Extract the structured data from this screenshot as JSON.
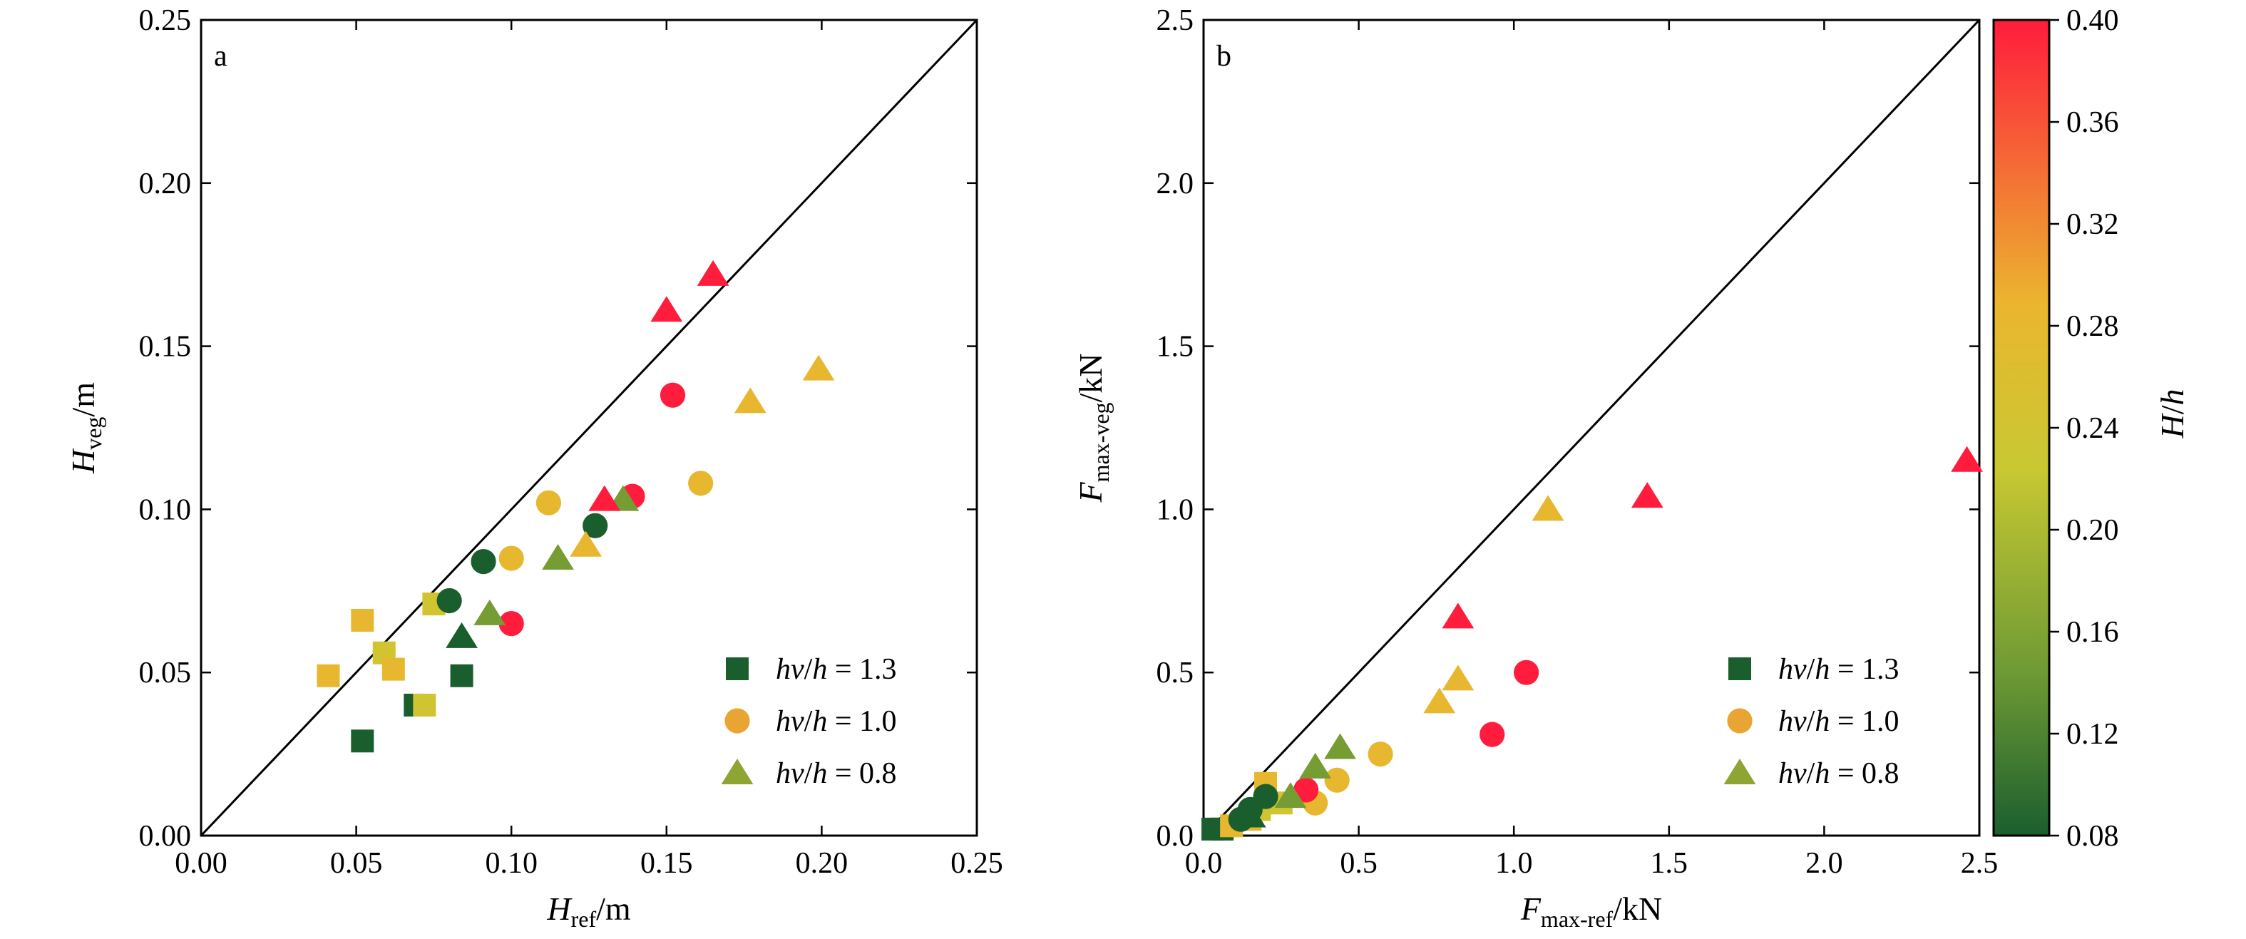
{
  "chart_data": [
    {
      "type": "scatter",
      "panel_label": "a",
      "title": "",
      "xlabel": {
        "main": "H",
        "sub": "ref",
        "unit": "/m"
      },
      "ylabel": {
        "main": "H",
        "sub": "veg",
        "unit": "/m"
      },
      "xlim": [
        0,
        0.25
      ],
      "ylim": [
        0,
        0.25
      ],
      "xticks": [
        "0.00",
        "0.05",
        "0.10",
        "0.15",
        "0.20",
        "0.25"
      ],
      "yticks": [
        "0.00",
        "0.05",
        "0.10",
        "0.15",
        "0.20",
        "0.25"
      ],
      "reference_line": "y = x",
      "legend_position": "lower-right",
      "series": [
        {
          "name": "hv/h = 1.3",
          "legend_label": {
            "a": "hv",
            "b": "/",
            "c": "h",
            "d": " = 1.3"
          },
          "marker": "square",
          "legend_color": "#1b5e2e",
          "points": [
            {
              "x": 0.052,
              "y": 0.029,
              "Hh": 0.08
            },
            {
              "x": 0.069,
              "y": 0.04,
              "Hh": 0.08
            },
            {
              "x": 0.084,
              "y": 0.049,
              "Hh": 0.08
            },
            {
              "x": 0.041,
              "y": 0.049,
              "Hh": 0.28
            },
            {
              "x": 0.052,
              "y": 0.066,
              "Hh": 0.28
            },
            {
              "x": 0.059,
              "y": 0.056,
              "Hh": 0.24
            },
            {
              "x": 0.062,
              "y": 0.051,
              "Hh": 0.28
            },
            {
              "x": 0.072,
              "y": 0.04,
              "Hh": 0.24
            },
            {
              "x": 0.075,
              "y": 0.071,
              "Hh": 0.24
            }
          ]
        },
        {
          "name": "hv/h = 1.0",
          "legend_label": {
            "a": "hv",
            "b": "/",
            "c": "h",
            "d": " = 1.0"
          },
          "marker": "circle",
          "legend_color": "#e9a533",
          "points": [
            {
              "x": 0.08,
              "y": 0.072,
              "Hh": 0.08
            },
            {
              "x": 0.091,
              "y": 0.084,
              "Hh": 0.08
            },
            {
              "x": 0.127,
              "y": 0.095,
              "Hh": 0.08
            },
            {
              "x": 0.1,
              "y": 0.085,
              "Hh": 0.28
            },
            {
              "x": 0.112,
              "y": 0.102,
              "Hh": 0.28
            },
            {
              "x": 0.161,
              "y": 0.108,
              "Hh": 0.28
            },
            {
              "x": 0.1,
              "y": 0.065,
              "Hh": 0.4
            },
            {
              "x": 0.139,
              "y": 0.104,
              "Hh": 0.4
            },
            {
              "x": 0.152,
              "y": 0.135,
              "Hh": 0.4
            }
          ]
        },
        {
          "name": "hv/h = 0.8",
          "legend_label": {
            "a": "hv",
            "b": "/",
            "c": "h",
            "d": " = 0.8"
          },
          "marker": "triangle",
          "legend_color": "#8ea433",
          "points": [
            {
              "x": 0.084,
              "y": 0.061,
              "Hh": 0.08
            },
            {
              "x": 0.093,
              "y": 0.068,
              "Hh": 0.15
            },
            {
              "x": 0.115,
              "y": 0.085,
              "Hh": 0.15
            },
            {
              "x": 0.136,
              "y": 0.103,
              "Hh": 0.15
            },
            {
              "x": 0.124,
              "y": 0.089,
              "Hh": 0.28
            },
            {
              "x": 0.177,
              "y": 0.133,
              "Hh": 0.28
            },
            {
              "x": 0.199,
              "y": 0.143,
              "Hh": 0.28
            },
            {
              "x": 0.13,
              "y": 0.103,
              "Hh": 0.4
            },
            {
              "x": 0.15,
              "y": 0.161,
              "Hh": 0.4
            },
            {
              "x": 0.165,
              "y": 0.172,
              "Hh": 0.4
            }
          ]
        }
      ]
    },
    {
      "type": "scatter",
      "panel_label": "b",
      "title": "",
      "xlabel": {
        "main": "F",
        "sub": "max-ref",
        "unit": "/kN"
      },
      "ylabel": {
        "main": "F",
        "sub": "max-veg",
        "unit": "/kN"
      },
      "xlim": [
        0,
        2.5
      ],
      "ylim": [
        0,
        2.5
      ],
      "xticks": [
        "0.0",
        "0.5",
        "1.0",
        "1.5",
        "2.0",
        "2.5"
      ],
      "yticks": [
        "0.0",
        "0.5",
        "1.0",
        "1.5",
        "2.0",
        "2.5"
      ],
      "reference_line": "y = x",
      "legend_position": "lower-right",
      "series": [
        {
          "name": "hv/h = 1.3",
          "legend_label": {
            "a": "hv",
            "b": "/",
            "c": "h",
            "d": " = 1.3"
          },
          "marker": "square",
          "legend_color": "#1b5e2e",
          "points": [
            {
              "x": 0.03,
              "y": 0.02,
              "Hh": 0.08
            },
            {
              "x": 0.06,
              "y": 0.02,
              "Hh": 0.08
            },
            {
              "x": 0.09,
              "y": 0.03,
              "Hh": 0.28
            },
            {
              "x": 0.15,
              "y": 0.05,
              "Hh": 0.28
            },
            {
              "x": 0.18,
              "y": 0.08,
              "Hh": 0.24
            },
            {
              "x": 0.2,
              "y": 0.16,
              "Hh": 0.28
            },
            {
              "x": 0.25,
              "y": 0.1,
              "Hh": 0.24
            }
          ]
        },
        {
          "name": "hv/h = 1.0",
          "legend_label": {
            "a": "hv",
            "b": "/",
            "c": "h",
            "d": " = 1.0"
          },
          "marker": "circle",
          "legend_color": "#e9a533",
          "points": [
            {
              "x": 0.12,
              "y": 0.05,
              "Hh": 0.08
            },
            {
              "x": 0.15,
              "y": 0.08,
              "Hh": 0.08
            },
            {
              "x": 0.2,
              "y": 0.12,
              "Hh": 0.08
            },
            {
              "x": 0.36,
              "y": 0.1,
              "Hh": 0.28
            },
            {
              "x": 0.43,
              "y": 0.17,
              "Hh": 0.28
            },
            {
              "x": 0.57,
              "y": 0.25,
              "Hh": 0.28
            },
            {
              "x": 0.33,
              "y": 0.14,
              "Hh": 0.4
            },
            {
              "x": 0.93,
              "y": 0.31,
              "Hh": 0.4
            },
            {
              "x": 1.04,
              "y": 0.5,
              "Hh": 0.4
            }
          ]
        },
        {
          "name": "hv/h = 0.8",
          "legend_label": {
            "a": "hv",
            "b": "/",
            "c": "h",
            "d": " = 0.8"
          },
          "marker": "triangle",
          "legend_color": "#8ea433",
          "points": [
            {
              "x": 0.15,
              "y": 0.06,
              "Hh": 0.08
            },
            {
              "x": 0.28,
              "y": 0.12,
              "Hh": 0.15
            },
            {
              "x": 0.36,
              "y": 0.21,
              "Hh": 0.15
            },
            {
              "x": 0.44,
              "y": 0.27,
              "Hh": 0.15
            },
            {
              "x": 0.76,
              "y": 0.41,
              "Hh": 0.28
            },
            {
              "x": 0.82,
              "y": 0.48,
              "Hh": 0.28
            },
            {
              "x": 1.11,
              "y": 1.0,
              "Hh": 0.28
            },
            {
              "x": 0.82,
              "y": 0.67,
              "Hh": 0.4
            },
            {
              "x": 1.43,
              "y": 1.04,
              "Hh": 0.4
            },
            {
              "x": 2.46,
              "y": 1.15,
              "Hh": 0.4
            }
          ]
        }
      ]
    }
  ],
  "colorbar": {
    "label": {
      "main": "H",
      "slash": "/",
      "sub": "h"
    },
    "range": [
      0.08,
      0.4
    ],
    "ticks": [
      "0.08",
      "0.12",
      "0.16",
      "0.20",
      "0.24",
      "0.28",
      "0.32",
      "0.36",
      "0.40"
    ],
    "colors": {
      "low": "#1b5e2e",
      "mid_low": "#6e9a34",
      "mid": "#c8c832",
      "mid_high": "#ebb62f",
      "high": "#ff1c3c"
    }
  }
}
